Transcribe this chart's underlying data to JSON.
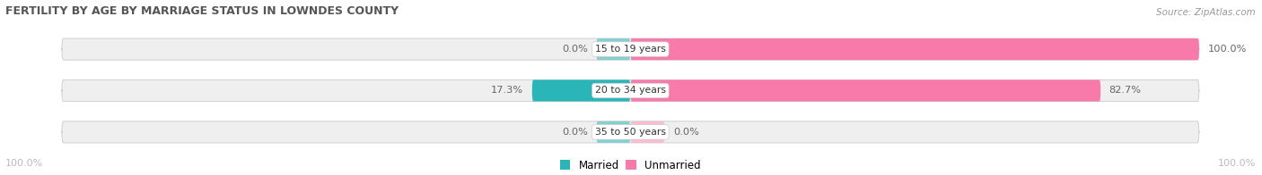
{
  "title": "FERTILITY BY AGE BY MARRIAGE STATUS IN LOWNDES COUNTY",
  "source": "Source: ZipAtlas.com",
  "categories": [
    "15 to 19 years",
    "20 to 34 years",
    "35 to 50 years"
  ],
  "married_values": [
    0.0,
    17.3,
    0.0
  ],
  "unmarried_values": [
    100.0,
    82.7,
    0.0
  ],
  "married_color_strong": "#2ab5b9",
  "married_color_light": "#85cfd2",
  "unmarried_color_strong": "#f87aaa",
  "unmarried_color_light": "#f9bcd1",
  "bar_bg_color": "#efefef",
  "bar_border_color": "#d0d0d0",
  "title_color": "#555555",
  "label_color": "#666666",
  "axis_label_color": "#bbbbbb",
  "figsize": [
    14.06,
    1.96
  ],
  "dpi": 100
}
